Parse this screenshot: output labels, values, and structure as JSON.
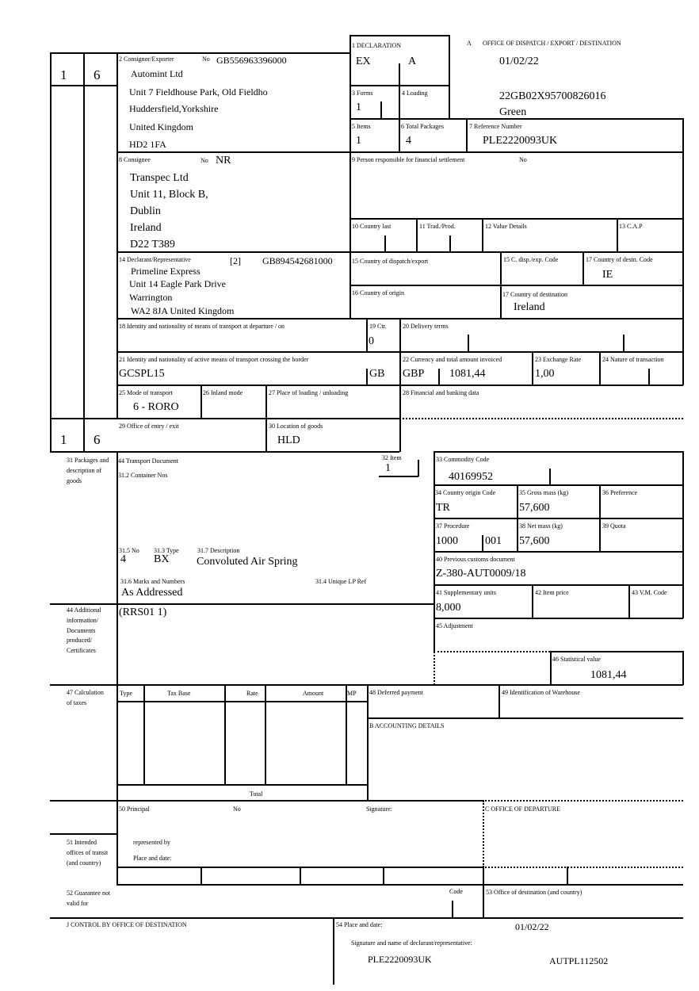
{
  "header": {
    "copy_left": "1",
    "copy_right": "6",
    "copy_left_2": "1",
    "copy_right_2": "6",
    "office_label": "A",
    "office_title": "OFFICE OF DISPATCH / EXPORT / DESTINATION",
    "date": "01/02/22",
    "mrn": "22GB02X95700826016",
    "route": "Green"
  },
  "b1": {
    "label": "1 DECLARATION",
    "type": "EX",
    "subtype": "A"
  },
  "b2": {
    "label": "2 Consignor/Exporter",
    "no_label": "No",
    "no": "GB556963396000",
    "lines": [
      "Automint Ltd",
      "Unit 7 Fieldhouse Park, Old Fieldho",
      "Huddersfield,Yorkshire",
      "United Kingdom",
      "HD2 1FA"
    ]
  },
  "b3": {
    "label": "3 Forms",
    "value": "1"
  },
  "b4": {
    "label": "4 Loading"
  },
  "b5": {
    "label": "5 Items",
    "value": "1"
  },
  "b6": {
    "label": "6 Total Packages",
    "value": "4"
  },
  "b7": {
    "label": "7 Reference Number",
    "value": "PLE2220093UK"
  },
  "b8": {
    "label": "8 Consignee",
    "no_label": "No",
    "no": "NR",
    "lines": [
      "Transpec Ltd",
      "Unit 11, Block B,",
      "Dublin",
      "Ireland",
      "D22 T389"
    ]
  },
  "b9": {
    "label": "9 Person responsible for financial settlement",
    "no_label": "No"
  },
  "b10": {
    "label": "10 Country last"
  },
  "b11": {
    "label": "11 Trad./Prod."
  },
  "b12": {
    "label": "12 Value Details"
  },
  "b13": {
    "label": "13 C.A.P"
  },
  "b14": {
    "label": "14 Declarant/Representative",
    "code": "[2]",
    "no": "GB894542681000",
    "lines": [
      "Primeline Express",
      "Unit 14 Eagle Park Drive",
      "Warrington",
      "WA2 8JA United Kingdom"
    ]
  },
  "b15": {
    "label": "15 Country of dispatch/export"
  },
  "b15a": {
    "label": "15 C. disp./exp. Code"
  },
  "b17a": {
    "label": "17 Country of destn. Code",
    "value": "IE"
  },
  "b16": {
    "label": "16 Country of origin"
  },
  "b17": {
    "label": "17 Country of destination",
    "value": "Ireland"
  },
  "b18": {
    "label": "18 Identity and nationality of means of transport at departure / on"
  },
  "b19": {
    "label": "19 Ctr.",
    "value": "0"
  },
  "b20": {
    "label": "20 Delivery terms"
  },
  "b21": {
    "label": "21 Identity and nationality of active means of transport crossing the border",
    "value": "GCSPL15",
    "nationality": "GB"
  },
  "b22": {
    "label": "22 Currency and total amount invoiced",
    "currency": "GBP",
    "amount": "1081,44"
  },
  "b23": {
    "label": "23 Exchange Rate",
    "value": "1,00"
  },
  "b24": {
    "label": "24 Nature of transaction"
  },
  "b25": {
    "label": "25 Mode of transport",
    "value": "6 - RORO"
  },
  "b26": {
    "label": "26 Inland mode"
  },
  "b27": {
    "label": "27 Place of loading / unloading"
  },
  "b28": {
    "label": "28 Financial and banking data"
  },
  "b29": {
    "label": "29 Office of entry / exit"
  },
  "b30": {
    "label": "30 Location of goods",
    "value": "HLD"
  },
  "b31": {
    "label": "31 Packages and description of goods",
    "transport_doc": "44 Transport Document",
    "container": "31.2 Container Nos",
    "no_label": "31.5 No",
    "no": "4",
    "type_label": "31.3 Type",
    "type": "BX",
    "desc_label": "31.7 Description",
    "desc": "Convoluted Air Spring",
    "marks_label": "31.6 Marks and Numbers",
    "marks": "As Addressed",
    "ulp_label": "31.4 Unique LP Ref"
  },
  "b32": {
    "label": "32 Item",
    "value": "1"
  },
  "b33": {
    "label": "33 Commodity Code",
    "value": "40169952"
  },
  "b34": {
    "label": "34 Country origin Code",
    "value": "TR"
  },
  "b35": {
    "label": "35 Gross mass (kg)",
    "value": "57,600"
  },
  "b36": {
    "label": "36 Preference"
  },
  "b37": {
    "label": "37 Procedure",
    "value": "1000",
    "value2": "001"
  },
  "b38": {
    "label": "38 Net mass (kg)",
    "value": "57,600"
  },
  "b39": {
    "label": "39 Quota"
  },
  "b40": {
    "label": "40 Previous customs document",
    "value": "Z-380-AUT0009/18"
  },
  "b41": {
    "label": "41 Supplementary units",
    "value": "8,000"
  },
  "b42": {
    "label": "42 Item price"
  },
  "b43": {
    "label": "43 V.M. Code"
  },
  "b44": {
    "label": "44 Additional information/ Documents produced/ Certificates",
    "value": "(RRS01 1)"
  },
  "b45": {
    "label": "45 Adjustment"
  },
  "b46": {
    "label": "46 Statistical value",
    "value": "1081,44"
  },
  "b47": {
    "label": "47 Calculation of taxes",
    "cols": [
      "Type",
      "Tax Base",
      "Rate",
      "Amount",
      "MP"
    ],
    "total": "Total"
  },
  "b48": {
    "label": "48 Deferred payment"
  },
  "b49": {
    "label": "49 Identification of Warehouse"
  },
  "bB": {
    "label": "B ACCOUNTING DETAILS"
  },
  "b50": {
    "label": "50 Principal",
    "no_label": "No",
    "signature": "Signature:",
    "represented": "represented by",
    "place": "Place and date:"
  },
  "bC": {
    "label": "C OFFICE OF DEPARTURE"
  },
  "b51": {
    "label": "51 Intended offices of transit (and country)"
  },
  "b52": {
    "label": "52 Guarantee not valid for",
    "code": "Code"
  },
  "b53": {
    "label": "53 Office of destination (and country)"
  },
  "bJ": {
    "label": "J CONTROL BY OFFICE OF DESTINATION"
  },
  "b54": {
    "label": "54 Place and date:",
    "date": "01/02/22",
    "sig_label": "Signature and name of declarant/representative:",
    "ref": "PLE2220093UK",
    "sig": "AUTPL112502"
  }
}
